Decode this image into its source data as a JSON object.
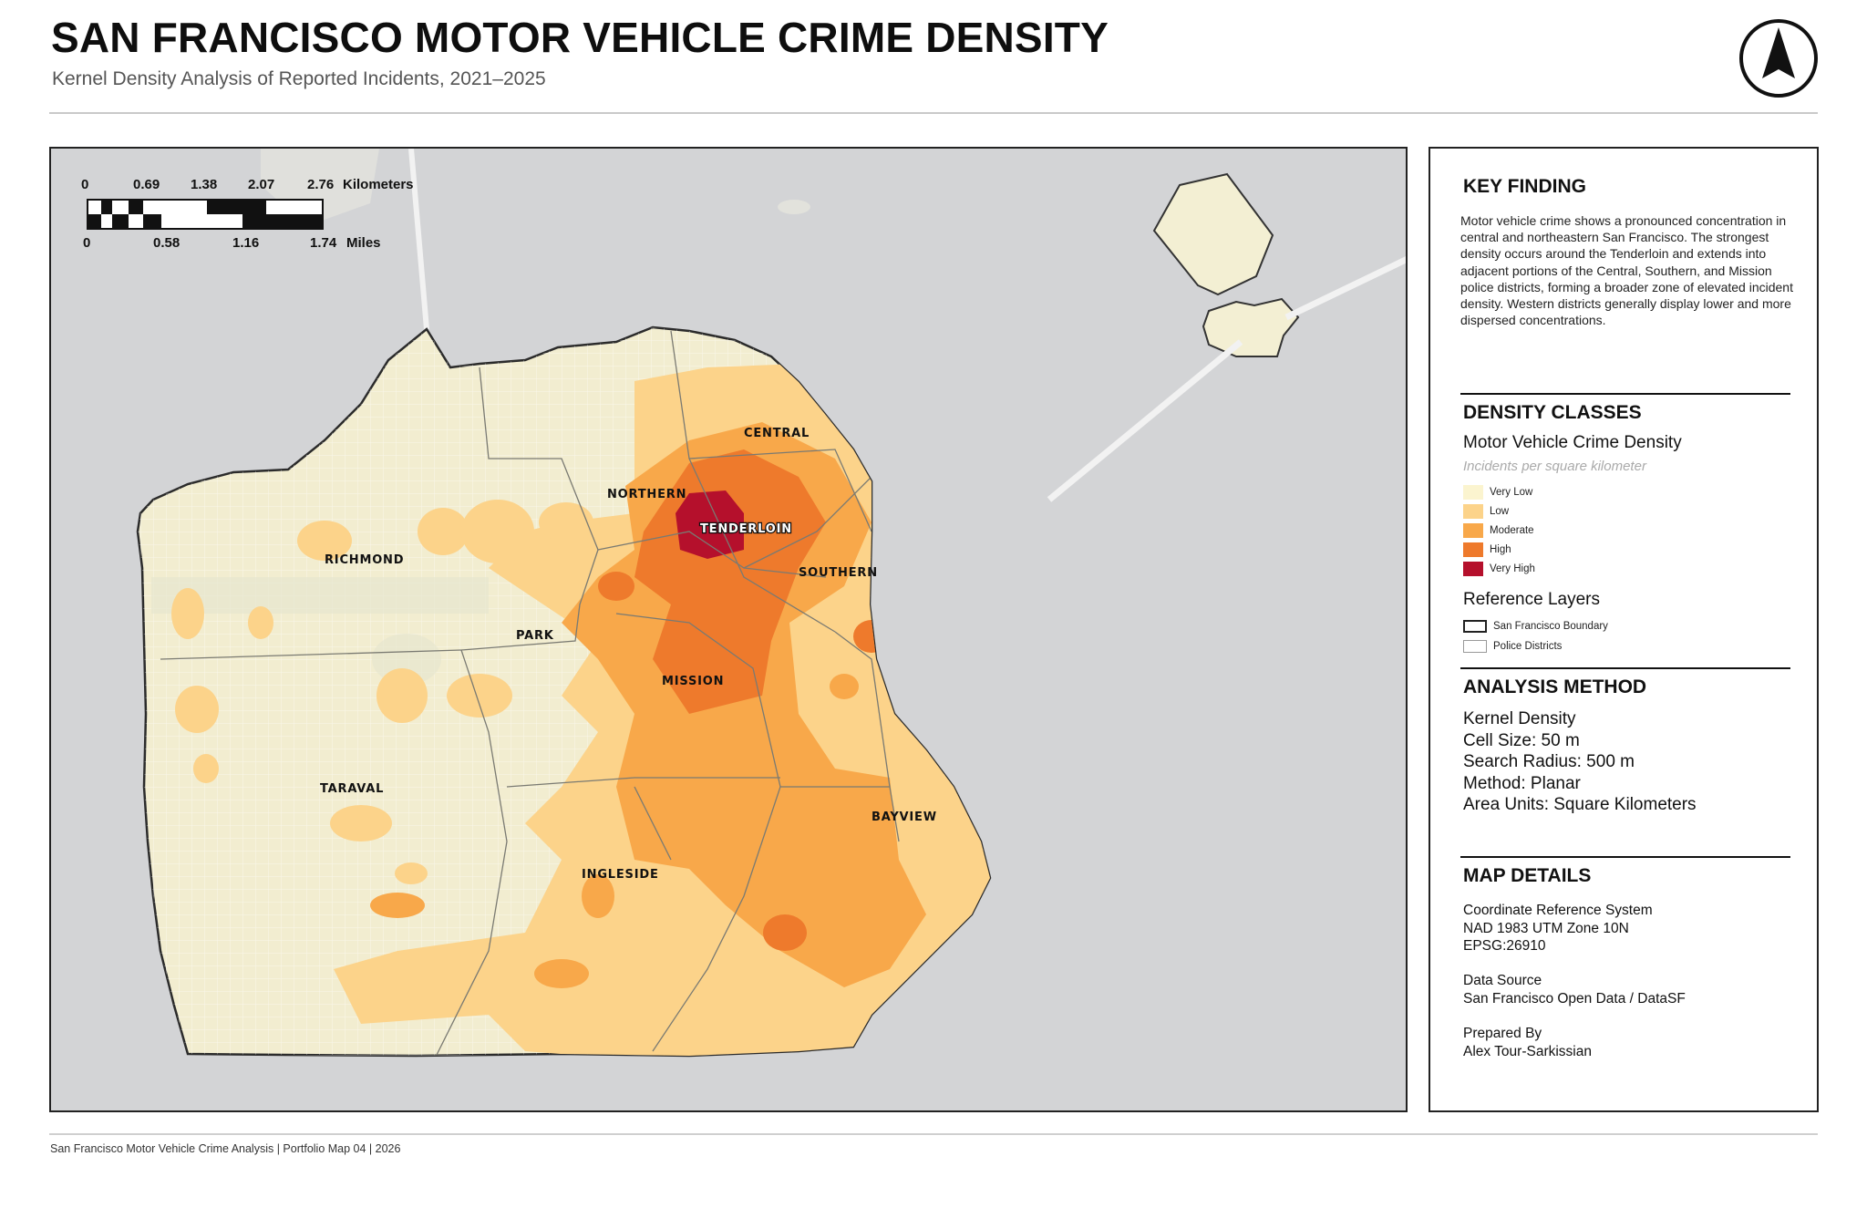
{
  "header": {
    "title": "SAN FRANCISCO MOTOR VEHICLE CRIME DENSITY",
    "subtitle": "Kernel Density Analysis of Reported Incidents, 2021–2025"
  },
  "north_arrow": {
    "icon": "north-arrow-icon"
  },
  "scale_bar": {
    "km_ticks": [
      "0",
      "0.69",
      "1.38",
      "2.07",
      "2.76"
    ],
    "km_unit": "Kilometers",
    "mi_ticks": [
      "0",
      "0.58",
      "1.16",
      "1.74"
    ],
    "mi_unit": "Miles"
  },
  "map": {
    "districts": [
      "RICHMOND",
      "NORTHERN",
      "CENTRAL",
      "TENDERLOIN",
      "SOUTHERN",
      "PARK",
      "MISSION",
      "TARAVAL",
      "INGLESIDE",
      "BAYVIEW"
    ]
  },
  "panel": {
    "key_finding": {
      "heading": "KEY FINDING",
      "text": "Motor vehicle crime shows a pronounced concentration in central and northeastern San Francisco. The strongest density occurs around the Tenderloin and extends into adjacent portions of the Central, Southern, and Mission police districts, forming a broader zone of elevated incident density. Western districts generally display lower and more dispersed concentrations."
    },
    "density_classes": {
      "heading": "DENSITY CLASSES",
      "layer_name": "Motor Vehicle Crime Density",
      "units": "Incidents per square kilometer",
      "classes": [
        {
          "label": "Very Low",
          "color": "#fbf4cf"
        },
        {
          "label": "Low",
          "color": "#fcd38a"
        },
        {
          "label": "Moderate",
          "color": "#f8a84a"
        },
        {
          "label": "High",
          "color": "#ee7a2c"
        },
        {
          "label": "Very High",
          "color": "#b5102c"
        }
      ],
      "reference_heading": "Reference Layers",
      "reference_layers": [
        {
          "label": "San Francisco Boundary"
        },
        {
          "label": "Police Districts"
        }
      ]
    },
    "analysis_method": {
      "heading": "ANALYSIS METHOD",
      "lines": [
        "Kernel Density",
        "Cell Size: 50 m",
        "Search Radius: 500 m",
        "Method: Planar",
        "Area Units: Square Kilometers"
      ]
    },
    "map_details": {
      "heading": "MAP DETAILS",
      "crs_label": "Coordinate Reference System",
      "crs_name": "NAD 1983 UTM Zone 10N",
      "crs_code": "EPSG:26910",
      "source_label": "Data Source",
      "source": "San Francisco Open Data / DataSF",
      "author_label": "Prepared By",
      "author": "Alex Tour-Sarkissian"
    }
  },
  "footer": {
    "text": "San Francisco Motor Vehicle Crime Analysis | Portfolio Map 04 | 2026"
  }
}
